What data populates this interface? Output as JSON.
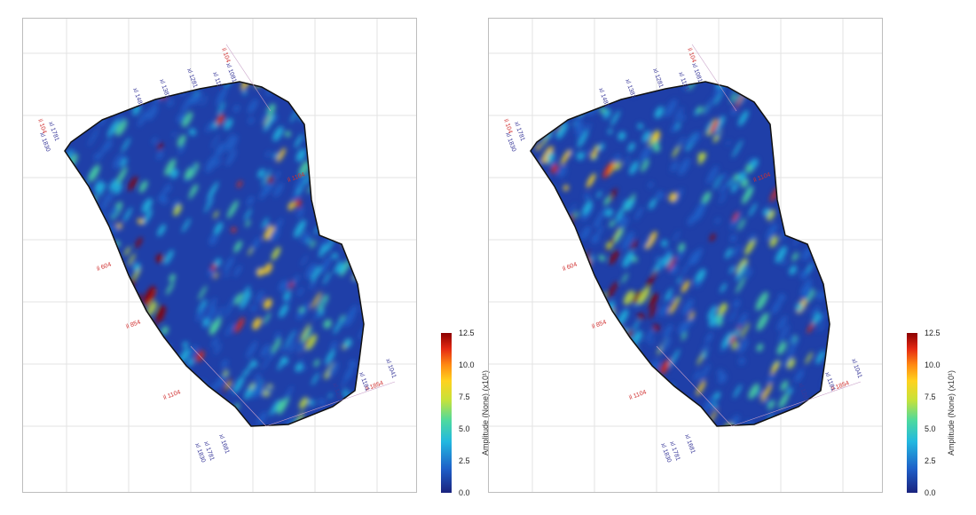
{
  "panels": [
    {
      "id": "left",
      "blue_labels": [
        "xl 1041",
        "xl 1081",
        "xl 1181",
        "xl 1281",
        "xl 1381",
        "xl 1481",
        "xl 1581",
        "xl 1681",
        "xl 1781",
        "xl 1830",
        "il 104",
        "il 1781",
        "il 1830"
      ],
      "red_labels": [
        "il 104",
        "il 1104",
        "il 1854",
        "il 1604",
        "il 604",
        "il 854",
        "il 1104",
        "il 1854"
      ]
    },
    {
      "id": "right",
      "blue_labels": [
        "xl 1041",
        "xl 1081",
        "xl 1181",
        "xl 1281",
        "xl 1381",
        "xl 1481",
        "xl 1581",
        "xl 1681",
        "xl 1781",
        "xl 1830",
        "il 104",
        "il 1781",
        "il 1830"
      ],
      "red_labels": [
        "il 104",
        "il 1104",
        "il 1854",
        "il 1604",
        "il 604",
        "il 854",
        "il 1104",
        "il 1854"
      ]
    }
  ],
  "colorbar": {
    "title": "Amplitude (None) (x10¹)",
    "ticks": [
      "12.5",
      "10.0",
      "7.5",
      "5.0",
      "2.5",
      "0.0"
    ],
    "colors": [
      "#1a237e",
      "#1e5fc8",
      "#22b8e0",
      "#4cd9a0",
      "#c6e23a",
      "#ffd21e",
      "#ff8a12",
      "#e52a12",
      "#8b0000"
    ]
  },
  "colorbar_right": {
    "title": "Amplitude (None) (x10¹)",
    "ticks": [
      "12.5",
      "10.0",
      "7.5",
      "5.0",
      "2.5",
      "0.0"
    ]
  }
}
